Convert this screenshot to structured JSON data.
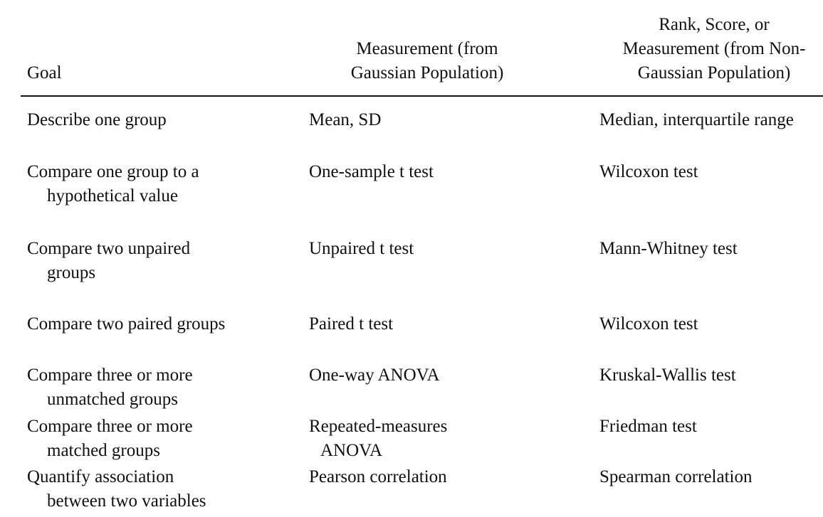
{
  "header": {
    "goal": "Goal",
    "gaussian": [
      "Measurement (from",
      "Gaussian Population)"
    ],
    "nongaussian": [
      "Rank, Score, or",
      "Measurement (from Non-",
      "Gaussian Population)"
    ]
  },
  "rows": [
    {
      "goal": [
        "Describe one group"
      ],
      "gaussian": [
        "Mean, SD"
      ],
      "nongaussian": [
        "Median, interquartile range"
      ]
    },
    {
      "goal": [
        "Compare one group to a",
        "hypothetical value"
      ],
      "gaussian": [
        "One-sample t test"
      ],
      "nongaussian": [
        "Wilcoxon test"
      ]
    },
    {
      "goal": [
        "Compare two unpaired",
        "groups"
      ],
      "gaussian": [
        "Unpaired t test"
      ],
      "nongaussian": [
        "Mann-Whitney test"
      ]
    },
    {
      "goal": [
        "Compare two paired groups"
      ],
      "gaussian": [
        "Paired t test"
      ],
      "nongaussian": [
        "Wilcoxon test"
      ]
    },
    {
      "goal": [
        "Compare three or more",
        "unmatched groups"
      ],
      "gaussian": [
        "One-way ANOVA"
      ],
      "nongaussian": [
        "Kruskal-Wallis test"
      ]
    },
    {
      "goal": [
        "Compare three or more",
        "matched groups"
      ],
      "gaussian": [
        "Repeated-measures",
        "ANOVA"
      ],
      "nongaussian": [
        "Friedman test"
      ]
    },
    {
      "goal": [
        "Quantify association",
        "between two variables"
      ],
      "gaussian": [
        "Pearson correlation"
      ],
      "nongaussian": [
        "Spearman correlation"
      ]
    }
  ]
}
